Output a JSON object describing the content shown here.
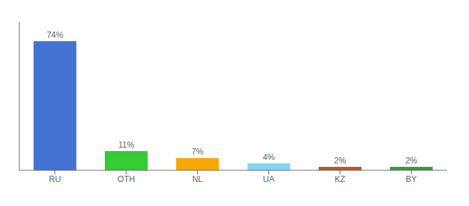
{
  "chart_data": {
    "type": "bar",
    "categories": [
      "RU",
      "OTH",
      "NL",
      "UA",
      "KZ",
      "BY"
    ],
    "values": [
      74,
      11,
      7,
      4,
      2,
      2
    ],
    "value_labels": [
      "74%",
      "11%",
      "7%",
      "4%",
      "2%",
      "2%"
    ],
    "colors": [
      "#4472d3",
      "#33cc33",
      "#f5a800",
      "#80d8f5",
      "#b85c1a",
      "#3a9a3a"
    ],
    "ylim": [
      0,
      85
    ],
    "data_labels": true,
    "tick_labels": "x",
    "grid": false
  }
}
